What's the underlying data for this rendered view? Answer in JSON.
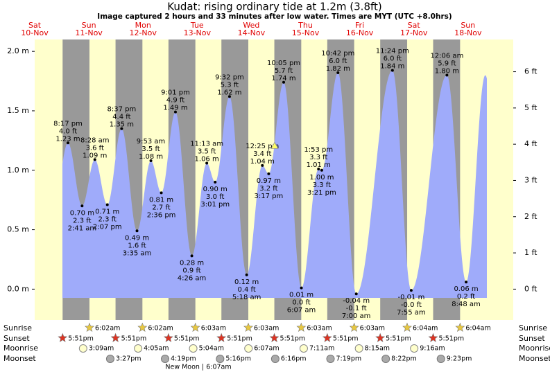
{
  "chart_data": {
    "type": "tide",
    "title": "Kudat: rising  ordinary tide at 1.2m (3.8ft)",
    "subtitle": "Image captured 2 hours and 33 minutes after low water. Times are MYT (UTC +8.0hrs)",
    "current_level_m": 1.2,
    "weekdays": [
      "Sat",
      "Sun",
      "Mon",
      "Tue",
      "Wed",
      "Thu",
      "Fri",
      "Sat",
      "Sun"
    ],
    "dates": [
      "10-Nov",
      "11-Nov",
      "12-Nov",
      "13-Nov",
      "14-Nov",
      "15-Nov",
      "16-Nov",
      "17-Nov",
      "18-Nov"
    ],
    "tides": {
      "times": [
        "8:17 pm",
        "2:41 am",
        "8:28 am",
        "2:07 pm",
        "8:37 pm",
        "3:35 am",
        "9:53 am",
        "2:36 pm",
        "9:01 pm",
        "4:26 am",
        "11:13 am",
        "3:01 pm",
        "9:32 pm",
        "5:18 am",
        "12:25 pm",
        "3:17 pm",
        "10:05 pm",
        "6:07 am",
        "1:53 pm",
        "3:21 pm",
        "10:42 pm",
        "7:00 am",
        "11:24 pm",
        "7:55 am",
        "12:06 am",
        "8:48 am"
      ],
      "values": [
        1.23,
        0.7,
        1.09,
        0.71,
        1.35,
        0.49,
        1.08,
        0.81,
        1.49,
        0.28,
        1.06,
        0.9,
        1.62,
        0.12,
        1.04,
        0.97,
        1.74,
        0.01,
        1.01,
        1.0,
        1.82,
        -0.04,
        1.84,
        -0.01,
        1.8,
        0.06
      ],
      "value_labels": [
        "1.23 m",
        "0.70 m",
        "1.09 m",
        "0.71 m",
        "1.35 m",
        "0.49 m",
        "1.08 m",
        "0.81 m",
        "1.49 m",
        "0.28 m",
        "1.06 m",
        "0.90 m",
        "1.62 m",
        "0.12 m",
        "1.04 m",
        "0.97 m",
        "1.74 m",
        "0.01 m",
        "1.01 m",
        "1.00 m",
        "1.82 m",
        "-0.04 m",
        "1.84 m",
        "-0.01 m",
        "1.80 m",
        "0.06 m"
      ],
      "ft_labels": [
        "4.0 ft",
        "2.3 ft",
        "3.6 ft",
        "2.3 ft",
        "4.4 ft",
        "1.6 ft",
        "3.5 ft",
        "2.7 ft",
        "4.9 ft",
        "0.9 ft",
        "3.5 ft",
        "3.0 ft",
        "5.3 ft",
        "0.4 ft",
        "3.4 ft",
        "3.2 ft",
        "5.7 ft",
        "0.0 ft",
        "3.3 ft",
        "3.3 ft",
        "6.0 ft",
        "-0.1 ft",
        "6.0 ft",
        "-0.0 ft",
        "5.9 ft",
        "0.2 ft"
      ],
      "color": "#9fabfa"
    },
    "ylim": [
      -0.26,
      2.1
    ],
    "yticks": [
      {
        "value": 0,
        "label": "0.0 m"
      },
      {
        "value": 0.5,
        "label": "0.5 m"
      },
      {
        "value": 1,
        "label": "1.0 m"
      },
      {
        "value": 1.5,
        "label": "1.5 m"
      },
      {
        "value": 2,
        "label": "2.0 m"
      }
    ],
    "y2lim": [
      -0.853,
      6.89
    ],
    "y2ticks": [
      {
        "value": 0,
        "label": "0 ft"
      },
      {
        "value": 1,
        "label": "1 ft"
      },
      {
        "value": 2,
        "label": "2 ft"
      },
      {
        "value": 3,
        "label": "3 ft"
      },
      {
        "value": 4,
        "label": "4 ft"
      },
      {
        "value": 5,
        "label": "5 ft"
      },
      {
        "value": 6,
        "label": "6 ft"
      }
    ],
    "day_color": "#ffffcc",
    "night_color": "#999999",
    "rows": {
      "sunrise": {
        "label": "Sunrise",
        "times": [
          null,
          "6:02am",
          "6:02am",
          "6:03am",
          "6:03am",
          "6:03am",
          "6:03am",
          "6:04am",
          "6:04am"
        ]
      },
      "sunset": {
        "label": "Sunset",
        "times": [
          "5:51pm",
          "5:51pm",
          "5:51pm",
          "5:51pm",
          "5:51pm",
          "5:51pm",
          "5:51pm",
          "5:51pm",
          null
        ]
      },
      "moonrise": {
        "label": "Moonrise",
        "times": [
          null,
          "3:09am",
          "4:05am",
          "5:04am",
          "6:07am",
          "7:11am",
          "8:15am",
          "9:16am",
          null
        ]
      },
      "moonset": {
        "label": "Moonset",
        "times": [
          null,
          "3:27pm",
          "4:19pm",
          "5:16pm",
          "6:16pm",
          "7:19pm",
          "8:22pm",
          "9:23pm",
          null
        ]
      }
    },
    "moon_phase": "New Moon | 6:07am"
  }
}
